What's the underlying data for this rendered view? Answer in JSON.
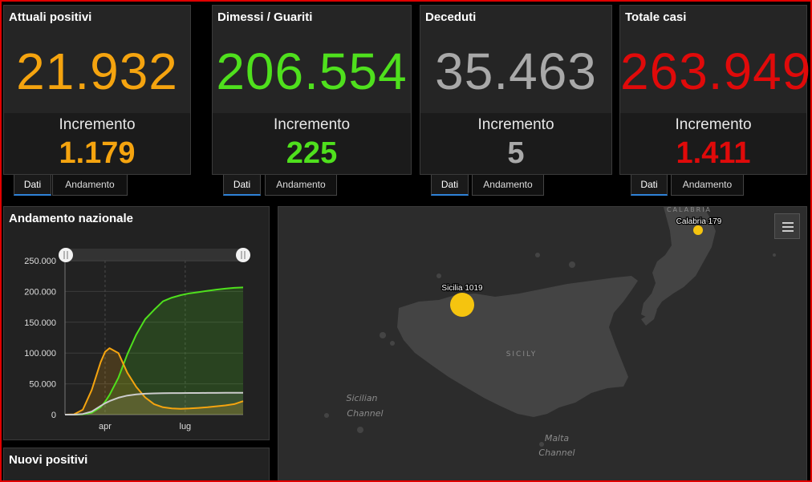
{
  "cards": [
    {
      "title": "Attuali positivi",
      "value": "21.932",
      "inc_label": "Incremento",
      "inc_value": "1.179",
      "color": "#f5a40f"
    },
    {
      "title": "Dimessi / Guariti",
      "value": "206.554",
      "inc_label": "Incremento",
      "inc_value": "225",
      "color": "#4fe01d"
    },
    {
      "title": "Deceduti",
      "value": "35.463",
      "inc_label": "Incremento",
      "inc_value": "5",
      "color": "#a9a9a9"
    },
    {
      "title": "Totale casi",
      "value": "263.949",
      "inc_label": "Incremento",
      "inc_value": "1.411",
      "color": "#e00a0a"
    }
  ],
  "tabs": {
    "data_label": "Dati",
    "trend_label": "Andamento"
  },
  "national_panel": {
    "title": "Andamento nazionale"
  },
  "new_positive_panel": {
    "title": "Nuovi positivi"
  },
  "chart_data": {
    "type": "area",
    "title": "Andamento nazionale",
    "x_ticks": [
      "apr",
      "lug"
    ],
    "y_ticks": [
      "0",
      "50.000",
      "100.000",
      "150.000",
      "200.000",
      "250.000"
    ],
    "ylim": [
      0,
      250000
    ],
    "x": [
      0,
      10,
      20,
      30,
      40,
      45,
      50,
      60,
      70,
      80,
      90,
      100,
      110,
      120,
      130,
      140,
      150,
      160,
      170,
      180,
      190,
      200
    ],
    "series": [
      {
        "color": "#4fe01d",
        "values": [
          0,
          0,
          500,
          3000,
          12000,
          21000,
          32000,
          60000,
          98000,
          130000,
          155000,
          170000,
          184000,
          190000,
          194000,
          197000,
          199000,
          201000,
          203000,
          204500,
          205800,
          206554
        ]
      },
      {
        "color": "#f5a40f",
        "values": [
          0,
          500,
          8000,
          40000,
          85000,
          102000,
          108000,
          100000,
          68000,
          45000,
          28000,
          17000,
          12000,
          10000,
          9500,
          10000,
          11000,
          12000,
          13500,
          15000,
          17000,
          21932
        ]
      },
      {
        "color": "#cccccc",
        "values": [
          0,
          50,
          1000,
          5000,
          14000,
          18500,
          22000,
          27500,
          31000,
          33000,
          34000,
          34500,
          34800,
          35000,
          35050,
          35100,
          35200,
          35250,
          35300,
          35380,
          35420,
          35463
        ]
      }
    ]
  },
  "map": {
    "region_label": "SICILY",
    "region_label_top": "CALABRIA",
    "water_1": [
      "Sicilian",
      "Channel"
    ],
    "water_2": [
      "Malta",
      "Channel"
    ],
    "markers": [
      {
        "label": "Sicilia 1019",
        "color": "#f5c40f"
      },
      {
        "label": "Calabria 179",
        "color": "#f5c40f"
      }
    ]
  }
}
